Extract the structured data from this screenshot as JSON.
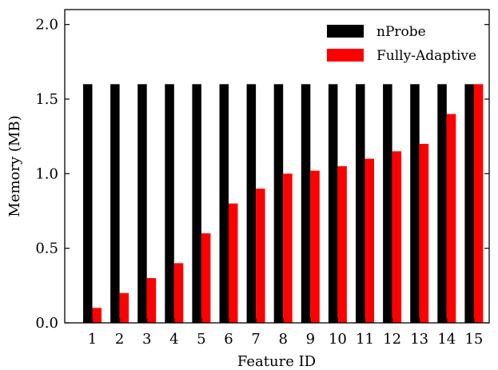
{
  "chart_data": {
    "type": "bar",
    "xlabel": "Feature ID",
    "ylabel": "Memory (MB)",
    "ylim": [
      0,
      2.1
    ],
    "yticks": [
      0.0,
      0.5,
      1.0,
      1.5,
      2.0
    ],
    "ytick_labels": [
      "0.0",
      "0.5",
      "1.0",
      "1.5",
      "2.0"
    ],
    "categories": [
      "1",
      "2",
      "3",
      "4",
      "5",
      "6",
      "7",
      "8",
      "9",
      "10",
      "11",
      "12",
      "13",
      "14",
      "15"
    ],
    "series": [
      {
        "name": "nProbe",
        "color": "#000000",
        "values": [
          1.6,
          1.6,
          1.6,
          1.6,
          1.6,
          1.6,
          1.6,
          1.6,
          1.6,
          1.6,
          1.6,
          1.6,
          1.6,
          1.6,
          1.6
        ]
      },
      {
        "name": "Fully-Adaptive",
        "color": "#ff0000",
        "values": [
          0.1,
          0.2,
          0.3,
          0.4,
          0.6,
          0.8,
          0.9,
          1.0,
          1.02,
          1.05,
          1.1,
          1.15,
          1.2,
          1.4,
          1.6
        ]
      }
    ],
    "grid": false,
    "legend_position": "top-right"
  }
}
